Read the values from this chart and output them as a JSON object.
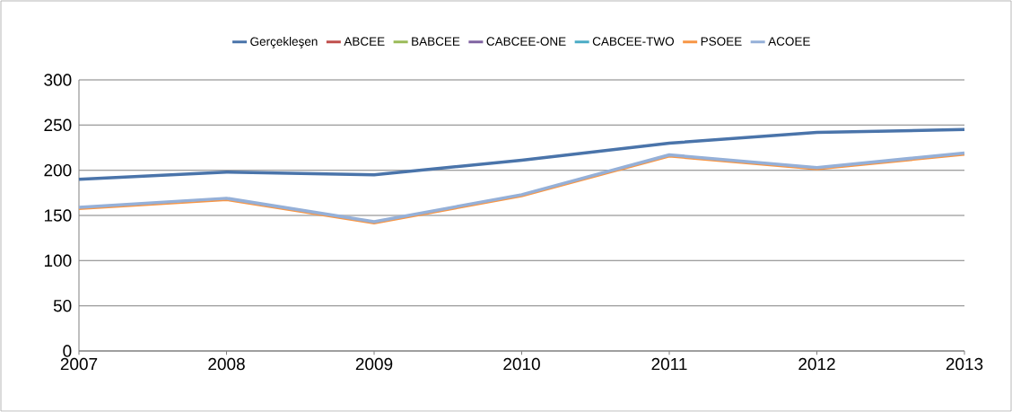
{
  "chart_data": {
    "type": "line",
    "x": [
      2007,
      2008,
      2009,
      2010,
      2011,
      2012,
      2013
    ],
    "series": [
      {
        "name": "Gerçekleşen",
        "color": "#4a74aa",
        "values": [
          190,
          198,
          195,
          211,
          230,
          242,
          245
        ]
      },
      {
        "name": "ABCEE",
        "color": "#c0504d",
        "values": [
          null,
          null,
          null,
          null,
          null,
          null,
          null
        ]
      },
      {
        "name": "BABCEE",
        "color": "#9bbb59",
        "values": [
          null,
          null,
          null,
          null,
          null,
          null,
          null
        ]
      },
      {
        "name": "CABCEE-ONE",
        "color": "#8064a2",
        "values": [
          null,
          null,
          null,
          null,
          null,
          null,
          null
        ]
      },
      {
        "name": "CABCEE-TWO",
        "color": "#4bacc6",
        "values": [
          null,
          null,
          null,
          null,
          null,
          null,
          null
        ]
      },
      {
        "name": "PSOEE",
        "color": "#f79646",
        "values": [
          157,
          167,
          141,
          171,
          215,
          201,
          217
        ]
      },
      {
        "name": "ACOEE",
        "color": "#95b0d8",
        "values": [
          159,
          169,
          143,
          173,
          217,
          203,
          219
        ]
      }
    ],
    "xlim": [
      2007,
      2013
    ],
    "xticks": [
      2007,
      2008,
      2009,
      2010,
      2011,
      2012,
      2013
    ],
    "ylim": [
      0,
      300
    ],
    "yticks": [
      0,
      50,
      100,
      150,
      200,
      250,
      300
    ],
    "grid": "y",
    "legend": "top",
    "marker": "none",
    "line_style": "solid"
  }
}
